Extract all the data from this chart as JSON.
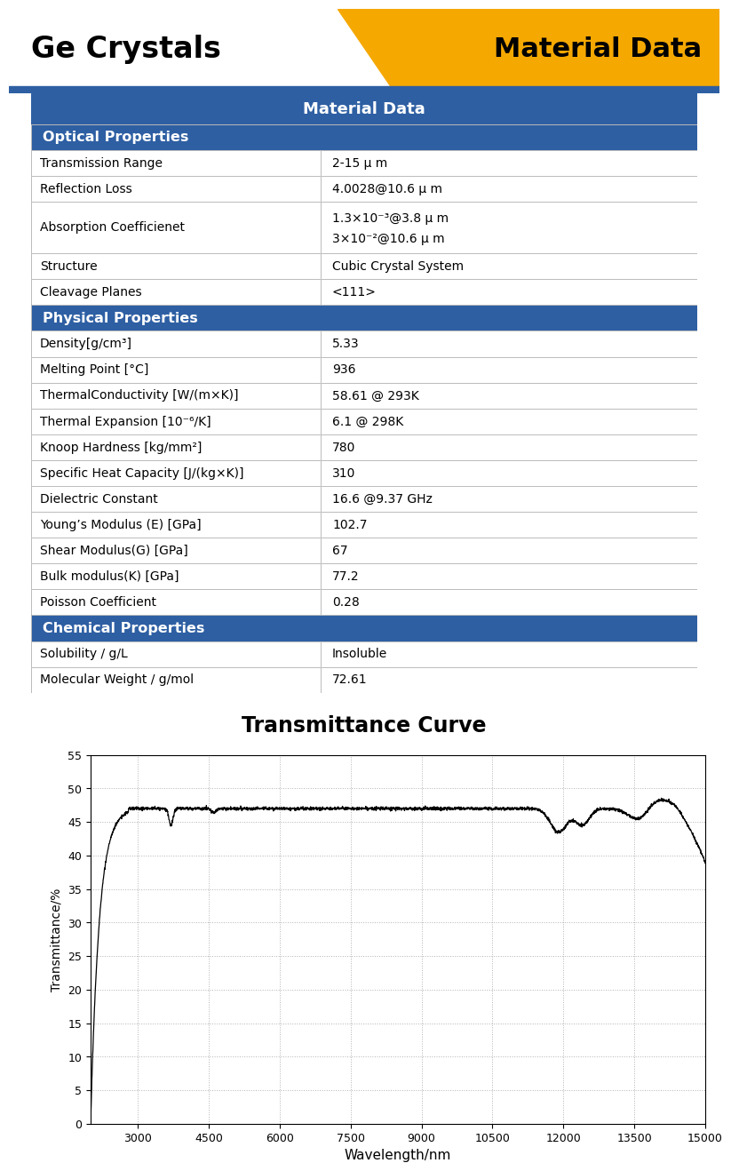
{
  "title_left": "Ge Crystals",
  "title_right": "Material Data",
  "blue": "#2E5FA3",
  "gold": "#F5A800",
  "white": "#FFFFFF",
  "black": "#000000",
  "table_header": "Material Data",
  "rows": [
    {
      "section": "Optical Properties"
    },
    {
      "label": "Transmission Range",
      "value": "2-15 μ m"
    },
    {
      "label": "Reflection Loss",
      "value": "4.0028@10.6 μ m"
    },
    {
      "label": "Absorption Coefficienet",
      "value": "1.3×10⁻³@3.8 μ m\n3×10⁻²@10.6 μ m",
      "double": true
    },
    {
      "label": "Structure",
      "value": "Cubic Crystal System"
    },
    {
      "label": "Cleavage Planes",
      "value": "<111>"
    },
    {
      "section": "Physical Properties"
    },
    {
      "label": "Density[g/cm³]",
      "value": "5.33"
    },
    {
      "label": "Melting Point [°C]",
      "value": "936"
    },
    {
      "label": "ThermalConductivity [W/(m×K)]",
      "value": "58.61 @ 293K"
    },
    {
      "label": "Thermal Expansion [10⁻⁶/K]",
      "value": "6.1 @ 298K"
    },
    {
      "label": "Knoop Hardness [kg/mm²]",
      "value": "780"
    },
    {
      "label": "Specific Heat Capacity [J/(kg×K)]",
      "value": "310"
    },
    {
      "label": "Dielectric Constant",
      "value": "16.6 @9.37 GHz"
    },
    {
      "label": "Young’s Modulus (E) [GPa]",
      "value": "102.7"
    },
    {
      "label": "Shear Modulus(G) [GPa]",
      "value": "67"
    },
    {
      "label": "Bulk modulus(K) [GPa]",
      "value": "77.2"
    },
    {
      "label": "Poisson Coefficient",
      "value": "0.28"
    },
    {
      "section": "Chemical Properties"
    },
    {
      "label": "Solubility / g/L",
      "value": "Insoluble"
    },
    {
      "label": "Molecular Weight / g/mol",
      "value": "72.61"
    }
  ],
  "chart_title": "Transmittance Curve",
  "xlabel": "Wavelength/nm",
  "ylabel": "Transmittance/%",
  "xmin": 2000,
  "xmax": 15000,
  "ymin": 0,
  "ymax": 55,
  "xticks": [
    3000,
    4500,
    6000,
    7500,
    9000,
    10500,
    12000,
    13500,
    15000
  ],
  "yticks": [
    0,
    5,
    10,
    15,
    20,
    25,
    30,
    35,
    40,
    45,
    50,
    55
  ]
}
